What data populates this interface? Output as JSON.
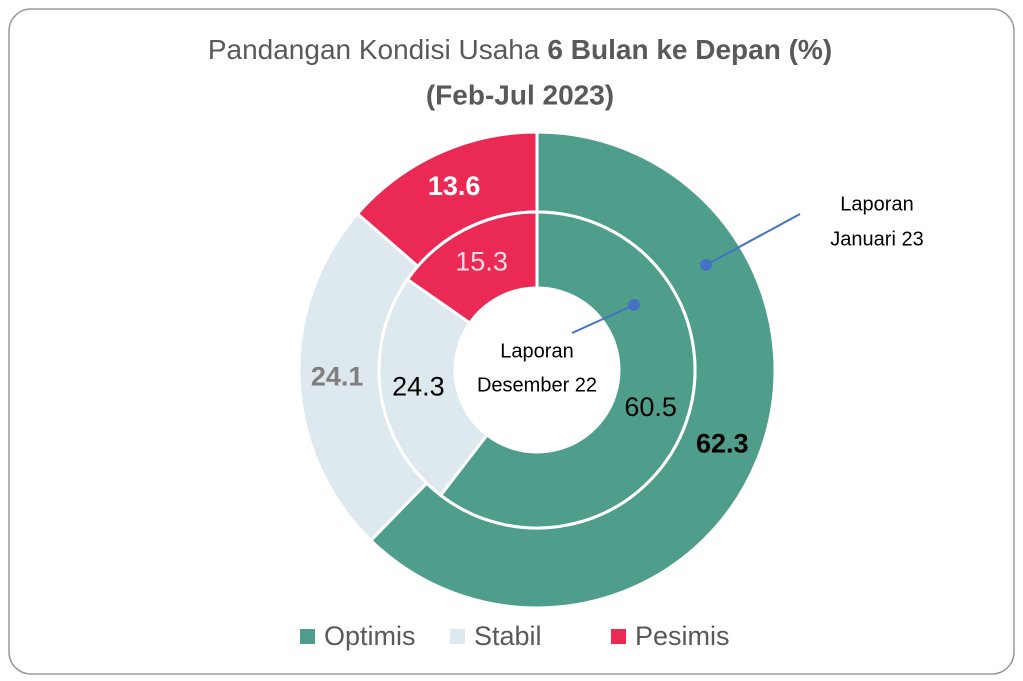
{
  "chart_data": {
    "type": "donut",
    "title": [
      "Pandangan Kondisi Usaha",
      "6 Bulan ke Depan (%)",
      "(Feb-Jul 2023)"
    ],
    "categories": [
      "Optimis",
      "Stabil",
      "Pesimis"
    ],
    "colors": [
      "#4f9e8c",
      "#dde9ee",
      "#ea2a55"
    ],
    "series": [
      {
        "values": [
          62.3,
          24.1,
          13.6
        ],
        "label_colors": [
          "#000000",
          "#7f7f7f",
          "#ffffff"
        ],
        "label_bold": true
      },
      {
        "values": [
          60.5,
          24.3,
          15.3
        ],
        "label_colors": [
          "#000000",
          "#000000",
          "#f2dce2"
        ],
        "label_bold": false
      }
    ],
    "annotations": [
      {
        "series": 0,
        "lines": [
          "Laporan",
          "Januari 23"
        ]
      },
      {
        "series": 1,
        "lines": [
          "Laporan",
          "Desember 22"
        ]
      }
    ],
    "legend": "bottom"
  }
}
